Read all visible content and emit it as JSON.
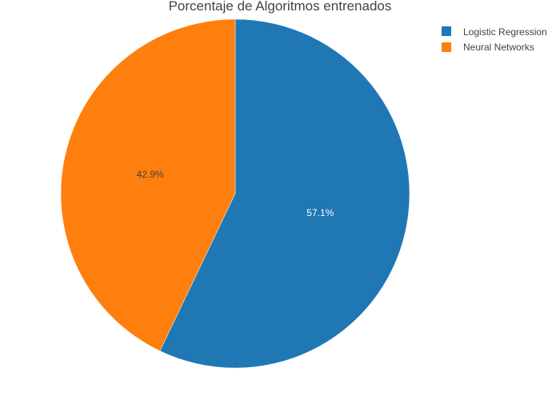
{
  "chart_data": {
    "type": "pie",
    "title": "Porcentaje de Algoritmos entrenados",
    "slices": [
      {
        "label": "Logistic Regression",
        "percent": 57.1,
        "percent_label": "57.1%",
        "color": "#1f77b4",
        "label_color": "#ffffff"
      },
      {
        "label": "Neural Networks",
        "percent": 42.9,
        "percent_label": "42.9%",
        "color": "#ff7f0e",
        "label_color": "#444444"
      }
    ],
    "legend": {
      "position": "top-right",
      "entries": [
        "Logistic Regression",
        "Neural Networks"
      ]
    }
  }
}
